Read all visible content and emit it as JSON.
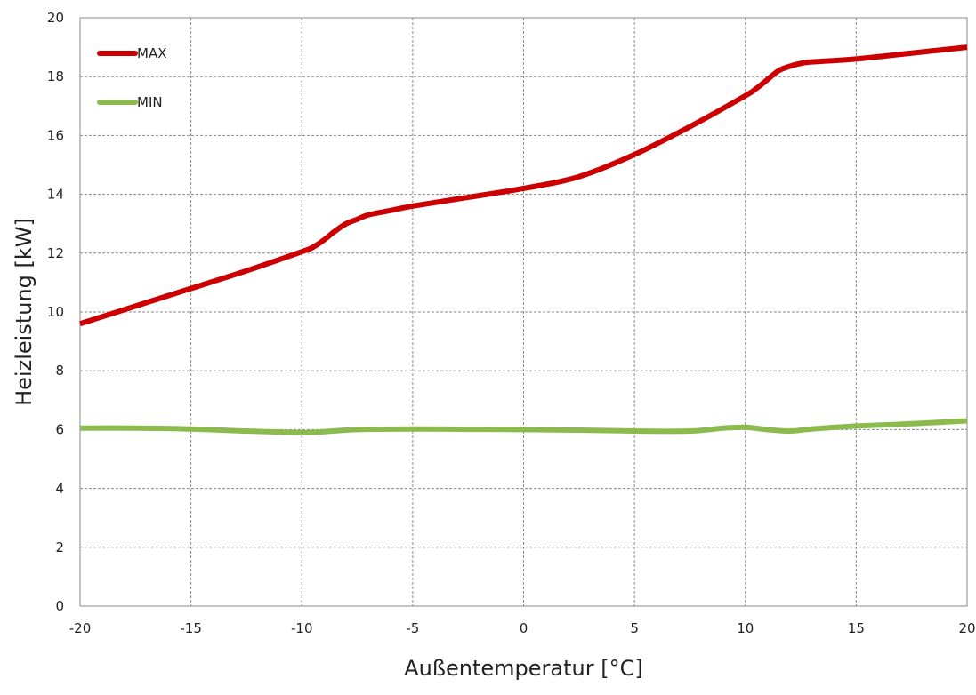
{
  "chart_data": {
    "type": "line",
    "xlabel": "Außentemperatur [°C]",
    "ylabel": "Heizleistung [kW]",
    "xlim": [
      -20,
      20
    ],
    "ylim": [
      0,
      20
    ],
    "x_ticks": [
      -20,
      -15,
      -10,
      -5,
      0,
      5,
      10,
      15,
      20
    ],
    "y_ticks": [
      0,
      2,
      4,
      6,
      8,
      10,
      12,
      14,
      16,
      18,
      20
    ],
    "grid": true,
    "legend_position": "top-left",
    "series": [
      {
        "name": "MAX",
        "color": "#cc0000",
        "x": [
          -20,
          -17.5,
          -15,
          -12.5,
          -10,
          -9.5,
          -9,
          -8.5,
          -8,
          -7.5,
          -7,
          -6,
          -5,
          -2.5,
          0,
          2.5,
          5,
          7.5,
          10,
          10.5,
          11,
          11.5,
          12,
          12.5,
          13,
          15,
          17.5,
          20
        ],
        "y": [
          9.6,
          10.2,
          10.8,
          11.4,
          12.05,
          12.2,
          12.45,
          12.75,
          13.0,
          13.15,
          13.3,
          13.45,
          13.6,
          13.9,
          14.2,
          14.6,
          15.35,
          16.3,
          17.35,
          17.6,
          17.9,
          18.2,
          18.35,
          18.45,
          18.5,
          18.6,
          18.8,
          19.0
        ]
      },
      {
        "name": "MIN",
        "color": "#8bbb4f",
        "x": [
          -20,
          -17.5,
          -15,
          -12.5,
          -10,
          -9,
          -7.5,
          -5,
          -2.5,
          0,
          2.5,
          5,
          7.5,
          9,
          10,
          11,
          12,
          13,
          15,
          17.5,
          20
        ],
        "y": [
          6.05,
          6.05,
          6.02,
          5.95,
          5.9,
          5.93,
          6.0,
          6.02,
          6.01,
          6.0,
          5.98,
          5.95,
          5.95,
          6.05,
          6.08,
          6.0,
          5.95,
          6.02,
          6.12,
          6.2,
          6.3
        ]
      }
    ]
  }
}
